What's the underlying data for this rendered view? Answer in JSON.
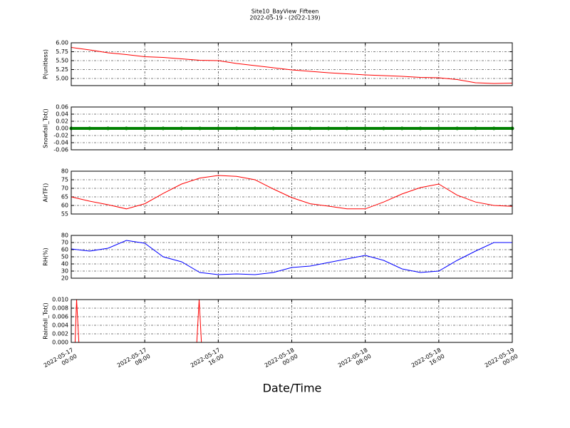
{
  "chart_data": [
    {
      "type": "line",
      "title": "Site10_BayView_Fifteen",
      "subtitle": "2022-05-19 - (2022-139)",
      "ylabel": "P(unitless)",
      "color": "#ff0000",
      "grid": true,
      "x": [
        "2022-05-17 00:00",
        "2022-05-17 02:00",
        "2022-05-17 04:00",
        "2022-05-17 06:00",
        "2022-05-17 08:00",
        "2022-05-17 10:00",
        "2022-05-17 12:00",
        "2022-05-17 14:00",
        "2022-05-17 16:00",
        "2022-05-17 18:00",
        "2022-05-17 20:00",
        "2022-05-17 22:00",
        "2022-05-18 00:00",
        "2022-05-18 02:00",
        "2022-05-18 04:00",
        "2022-05-18 06:00",
        "2022-05-18 08:00",
        "2022-05-18 10:00",
        "2022-05-18 12:00",
        "2022-05-18 14:00",
        "2022-05-18 16:00",
        "2022-05-18 18:00",
        "2022-05-18 20:00",
        "2022-05-18 22:00",
        "2022-05-19 00:00"
      ],
      "values": [
        5.87,
        5.8,
        5.72,
        5.67,
        5.61,
        5.59,
        5.55,
        5.51,
        5.5,
        5.42,
        5.36,
        5.3,
        5.24,
        5.2,
        5.16,
        5.13,
        5.1,
        5.08,
        5.06,
        5.03,
        5.02,
        4.97,
        4.88,
        4.86,
        4.87
      ],
      "ylim": [
        4.8,
        6.0
      ],
      "yticks": [
        {
          "value": 5.0,
          "label": "5.00"
        },
        5.25,
        {
          "value": 5.5,
          "label": "5.50"
        },
        5.75,
        {
          "value": 6.0,
          "label": "6.00"
        }
      ]
    },
    {
      "type": "line",
      "ylabel": "Snowfall_Tot()",
      "color": "#008000",
      "grid": true,
      "markers": true,
      "x": [
        "2022-05-17 00:00",
        "2022-05-17 02:00",
        "2022-05-17 04:00",
        "2022-05-17 06:00",
        "2022-05-17 08:00",
        "2022-05-17 10:00",
        "2022-05-17 12:00",
        "2022-05-17 14:00",
        "2022-05-17 16:00",
        "2022-05-17 18:00",
        "2022-05-17 20:00",
        "2022-05-17 22:00",
        "2022-05-18 00:00",
        "2022-05-18 02:00",
        "2022-05-18 04:00",
        "2022-05-18 06:00",
        "2022-05-18 08:00",
        "2022-05-18 10:00",
        "2022-05-18 12:00",
        "2022-05-18 14:00",
        "2022-05-18 16:00",
        "2022-05-18 18:00",
        "2022-05-18 20:00",
        "2022-05-18 22:00",
        "2022-05-19 00:00"
      ],
      "values": [
        0,
        0,
        0,
        0,
        0,
        0,
        0,
        0,
        0,
        0,
        0,
        0,
        0,
        0,
        0,
        0,
        0,
        0,
        0,
        0,
        0,
        0,
        0,
        0,
        0
      ],
      "ylim": [
        -0.06,
        0.06
      ],
      "yticks": [
        -0.06,
        -0.04,
        -0.02,
        {
          "value": 0,
          "label": "0.00"
        },
        0.02,
        0.04,
        0.06
      ]
    },
    {
      "type": "line",
      "ylabel": "AirTF()",
      "color": "#ff0000",
      "grid": true,
      "x": [
        "2022-05-17 00:00",
        "2022-05-17 02:00",
        "2022-05-17 04:00",
        "2022-05-17 06:00",
        "2022-05-17 08:00",
        "2022-05-17 10:00",
        "2022-05-17 12:00",
        "2022-05-17 14:00",
        "2022-05-17 16:00",
        "2022-05-17 18:00",
        "2022-05-17 20:00",
        "2022-05-17 22:00",
        "2022-05-18 00:00",
        "2022-05-18 02:00",
        "2022-05-18 04:00",
        "2022-05-18 06:00",
        "2022-05-18 08:00",
        "2022-05-18 10:00",
        "2022-05-18 12:00",
        "2022-05-18 14:00",
        "2022-05-18 16:00",
        "2022-05-18 18:00",
        "2022-05-18 20:00",
        "2022-05-18 22:00",
        "2022-05-19 00:00"
      ],
      "values": [
        65,
        62.5,
        60.4,
        58,
        61,
        67,
        72.5,
        76,
        77.5,
        77,
        75,
        69.6,
        64.6,
        61,
        59.6,
        58,
        58,
        62,
        66.7,
        70.4,
        72.5,
        66,
        62,
        60,
        59.5
      ],
      "ylim": [
        55,
        80
      ],
      "yticks": [
        55,
        60,
        65,
        70,
        75,
        80
      ]
    },
    {
      "type": "line",
      "ylabel": "RH(%)",
      "color": "#0000ff",
      "grid": true,
      "x": [
        "2022-05-17 00:00",
        "2022-05-17 02:00",
        "2022-05-17 04:00",
        "2022-05-17 06:00",
        "2022-05-17 08:00",
        "2022-05-17 10:00",
        "2022-05-17 12:00",
        "2022-05-17 14:00",
        "2022-05-17 16:00",
        "2022-05-17 18:00",
        "2022-05-17 20:00",
        "2022-05-17 22:00",
        "2022-05-18 00:00",
        "2022-05-18 02:00",
        "2022-05-18 04:00",
        "2022-05-18 06:00",
        "2022-05-18 08:00",
        "2022-05-18 10:00",
        "2022-05-18 12:00",
        "2022-05-18 14:00",
        "2022-05-18 16:00",
        "2022-05-18 18:00",
        "2022-05-18 20:00",
        "2022-05-18 22:00",
        "2022-05-19 00:00"
      ],
      "values": [
        61,
        58,
        62,
        73,
        69,
        50,
        43,
        28,
        25,
        26,
        25,
        28,
        35,
        37,
        42,
        47,
        52,
        45,
        33,
        28,
        30,
        45,
        58,
        70,
        70
      ],
      "ylim": [
        20,
        80
      ],
      "yticks": [
        20,
        30,
        40,
        50,
        60,
        70,
        80
      ]
    },
    {
      "type": "line",
      "ylabel": "Rainfall_Tot()",
      "xlabel": "Date/Time",
      "color": "#ff0000",
      "grid": true,
      "x": [
        "2022-05-17 00:00",
        "2022-05-17 00:25",
        "2022-05-17 00:35",
        "2022-05-17 00:50",
        "2022-05-17 13:40",
        "2022-05-17 13:55",
        "2022-05-17 14:10",
        "2022-05-19 00:00"
      ],
      "values": [
        0,
        0,
        0.01,
        0,
        0,
        0.01,
        0,
        0
      ],
      "ylim": [
        0,
        0.01
      ],
      "yticks": [
        {
          "value": 0,
          "label": "0.000"
        },
        0.002,
        0.004,
        0.006,
        0.008,
        {
          "value": 0.01,
          "label": "0.010"
        }
      ],
      "xlim": [
        "2022-05-17 00:00",
        "2022-05-19 00:00"
      ],
      "xticks": [
        "2022-05-17 00:00",
        "2022-05-17 08:00",
        "2022-05-17 16:00",
        "2022-05-18 00:00",
        "2022-05-18 08:00",
        "2022-05-18 16:00",
        "2022-05-19 00:00"
      ]
    }
  ]
}
